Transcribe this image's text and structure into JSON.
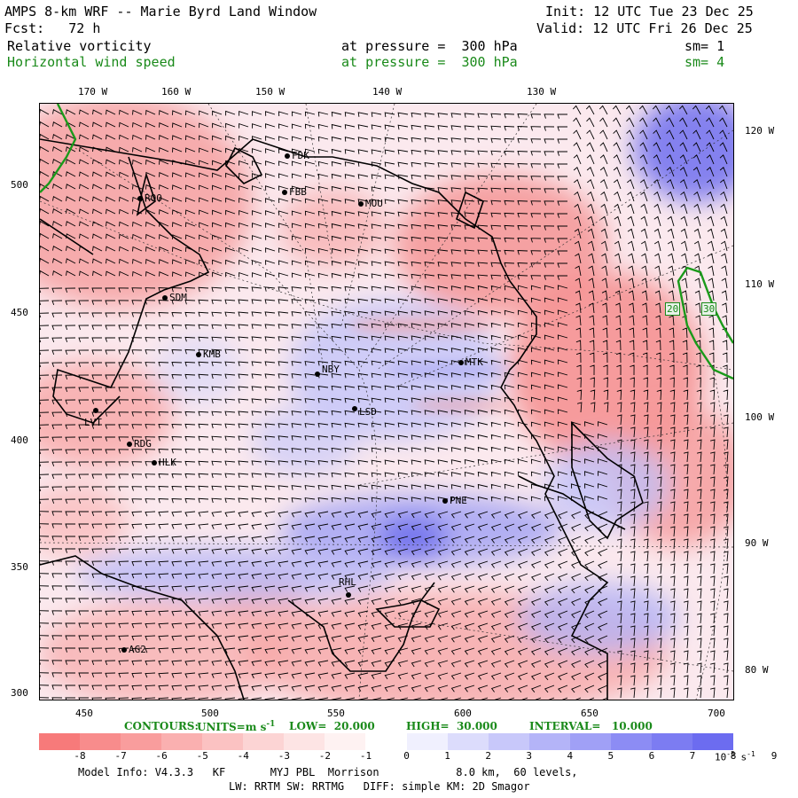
{
  "header": {
    "title": "AMPS 8-km WRF -- Marie Byrd Land Window",
    "init": "Init: 12 UTC Tue 23 Dec 25",
    "fcst": "Fcst:   72 h",
    "valid": "Valid: 12 UTC Fri 26 Dec 25",
    "field1": {
      "name": "Relative vorticity",
      "level": "at pressure =  300 hPa",
      "sm": "sm= 1"
    },
    "field2": {
      "name": "Horizontal wind speed",
      "level": "at pressure =  300 hPa",
      "sm": "sm= 4"
    }
  },
  "axes": {
    "top_lon": [
      "170 W",
      "160 W",
      "150 W",
      "140 W",
      "130 W"
    ],
    "right_lon": [
      "120 W",
      "110 W",
      "100 W",
      "90 W",
      "80 W"
    ],
    "left_y": [
      "500",
      "450",
      "400",
      "350",
      "300"
    ],
    "bottom_x": [
      "450",
      "500",
      "550",
      "600",
      "650",
      "700"
    ]
  },
  "stations": [
    "FDK",
    "FBB",
    "MOU",
    "ROO",
    "SDM",
    "KMB",
    "NBY",
    "MTK",
    "LSD",
    "LVT",
    "RDG",
    "HLK",
    "PNE",
    "RHL",
    "AG2"
  ],
  "contour_labels": [
    "20",
    "30"
  ],
  "contour_info": {
    "contours": "CONTOURS:",
    "units_prefix": "UNITS=m s",
    "units_exp": "-1",
    "low": "LOW=  20.000",
    "high": "HIGH=  30.000",
    "interval": "INTERVAL=   10.000"
  },
  "colorbar": {
    "ticks": [
      "-8",
      "-7",
      "-6",
      "-5",
      "-4",
      "-3",
      "-2",
      "-1",
      "0",
      "1",
      "2",
      "3",
      "4",
      "5",
      "6",
      "7",
      "8",
      "9"
    ],
    "unit_prefix": "10",
    "unit_exp": "-5",
    "unit_suffix": "s",
    "unit_suffix_exp": "-1",
    "colors": [
      "#f77a7a",
      "#f88c8c",
      "#f99d9d",
      "#fab0b0",
      "#fbc2c2",
      "#fcd4d4",
      "#fde4e4",
      "#fef2f2",
      "#ffffff",
      "#f0f0fe",
      "#dcdcfc",
      "#c8c8fa",
      "#b4b4f8",
      "#a0a0f6",
      "#8c8cf4",
      "#7c7cf2",
      "#6c6cf0"
    ]
  },
  "footer": {
    "line1": "Model Info: V4.3.3   KF       MYJ PBL  Morrison            8.0 km,  60 levels,",
    "line2": "LW: RRTM SW: RRTMG   DIFF: simple KM: 2D Smagor"
  }
}
